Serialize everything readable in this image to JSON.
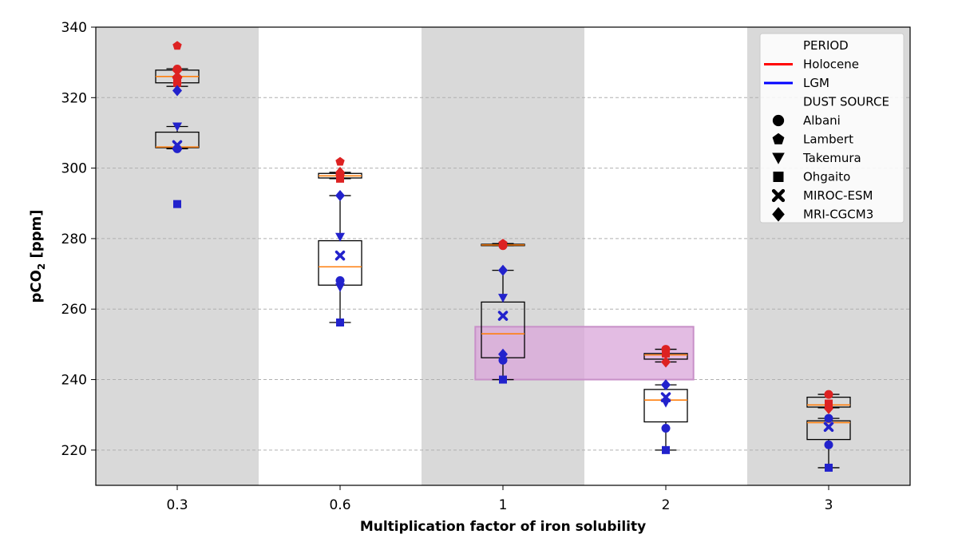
{
  "chart_data": {
    "type": "box",
    "xlabel": "Multiplication factor of iron solubility",
    "ylabel_main": "pCO",
    "ylabel_sub": "2",
    "ylabel_unit": " [ppm]",
    "categories": [
      "0.3",
      "0.6",
      "1",
      "2",
      "3"
    ],
    "ylim": [
      210,
      340
    ],
    "yticks": [
      220,
      240,
      260,
      280,
      300,
      320,
      340
    ],
    "grid": "horizontal dashed",
    "shaded_categories": [
      "0.3",
      "1",
      "3"
    ],
    "highlight_band": {
      "x_from": 1.83,
      "x_to": 3.17,
      "y_from": 240,
      "y_to": 255,
      "color": "#d9a6d9"
    },
    "legend": {
      "placement": "top-right",
      "period_title": "PERIOD",
      "period_entries": [
        {
          "label": "Holocene",
          "color": "#ff0000"
        },
        {
          "label": "LGM",
          "color": "#0000ff"
        }
      ],
      "source_title": "DUST SOURCE",
      "source_entries": [
        {
          "label": "Albani",
          "marker": "circle"
        },
        {
          "label": "Lambert",
          "marker": "pentagon"
        },
        {
          "label": "Takemura",
          "marker": "triangle-down"
        },
        {
          "label": "Ohgaito",
          "marker": "square"
        },
        {
          "label": "MIROC-ESM",
          "marker": "x"
        },
        {
          "label": "MRI-CGCM3",
          "marker": "diamond"
        }
      ]
    },
    "colors": {
      "holocene": "#dd2222",
      "lgm": "#2222cc",
      "median": "#ff7f0e",
      "box": "#000000",
      "shade": "#d9d9d9"
    },
    "boxes": [
      {
        "category": "0.3",
        "period": "Holocene",
        "whisker_low": 323.2,
        "q1": 324.2,
        "median": 326.0,
        "q3": 327.8,
        "whisker_high": 328.2
      },
      {
        "category": "0.3",
        "period": "LGM",
        "whisker_low": 305.5,
        "q1": 305.8,
        "median": 306.0,
        "q3": 310.2,
        "whisker_high": 311.8
      },
      {
        "category": "0.6",
        "period": "Holocene",
        "whisker_low": 297.0,
        "q1": 297.2,
        "median": 297.8,
        "q3": 298.5,
        "whisker_high": 298.8
      },
      {
        "category": "0.6",
        "period": "LGM",
        "whisker_low": 256.2,
        "q1": 266.8,
        "median": 272.0,
        "q3": 279.4,
        "whisker_high": 292.2
      },
      {
        "category": "1",
        "period": "Holocene",
        "whisker_low": 278.0,
        "q1": 278.0,
        "median": 278.2,
        "q3": 278.4,
        "whisker_high": 278.6
      },
      {
        "category": "1",
        "period": "LGM",
        "whisker_low": 240.0,
        "q1": 246.2,
        "median": 253.0,
        "q3": 262.0,
        "whisker_high": 271.0
      },
      {
        "category": "2",
        "period": "Holocene",
        "whisker_low": 245.0,
        "q1": 245.8,
        "median": 247.0,
        "q3": 247.4,
        "whisker_high": 248.6
      },
      {
        "category": "2",
        "period": "LGM",
        "whisker_low": 220.0,
        "q1": 228.0,
        "median": 234.2,
        "q3": 237.2,
        "whisker_high": 238.5
      },
      {
        "category": "3",
        "period": "Holocene",
        "whisker_low": 232.0,
        "q1": 232.2,
        "median": 232.8,
        "q3": 235.0,
        "whisker_high": 235.8
      },
      {
        "category": "3",
        "period": "LGM",
        "whisker_low": 215.0,
        "q1": 223.0,
        "median": 227.8,
        "q3": 228.3,
        "whisker_high": 229.0
      }
    ],
    "points": [
      {
        "category": "0.3",
        "period": "Holocene",
        "source": "Lambert",
        "value": 334.7
      },
      {
        "category": "0.3",
        "period": "Holocene",
        "source": "Albani",
        "value": 328.1
      },
      {
        "category": "0.3",
        "period": "Holocene",
        "source": "MIROC-ESM",
        "value": 326.8
      },
      {
        "category": "0.3",
        "period": "Holocene",
        "source": "MRI-CGCM3",
        "value": 325.5
      },
      {
        "category": "0.3",
        "period": "Holocene",
        "source": "Ohgaito",
        "value": 324.2
      },
      {
        "category": "0.3",
        "period": "Holocene",
        "source": "Takemura",
        "value": 323.2
      },
      {
        "category": "0.3",
        "period": "LGM",
        "source": "MRI-CGCM3",
        "value": 322.0
      },
      {
        "category": "0.3",
        "period": "LGM",
        "source": "Takemura",
        "value": 311.8
      },
      {
        "category": "0.3",
        "period": "LGM",
        "source": "MIROC-ESM",
        "value": 306.5
      },
      {
        "category": "0.3",
        "period": "LGM",
        "source": "Albani",
        "value": 305.5
      },
      {
        "category": "0.3",
        "period": "LGM",
        "source": "Ohgaito",
        "value": 289.8
      },
      {
        "category": "0.6",
        "period": "Holocene",
        "source": "Lambert",
        "value": 301.8
      },
      {
        "category": "0.6",
        "period": "Holocene",
        "source": "MRI-CGCM3",
        "value": 298.8
      },
      {
        "category": "0.6",
        "period": "Holocene",
        "source": "Albani",
        "value": 298.2
      },
      {
        "category": "0.6",
        "period": "Holocene",
        "source": "Ohgaito",
        "value": 297.0
      },
      {
        "category": "0.6",
        "period": "LGM",
        "source": "MRI-CGCM3",
        "value": 292.2
      },
      {
        "category": "0.6",
        "period": "LGM",
        "source": "Takemura",
        "value": 280.5
      },
      {
        "category": "0.6",
        "period": "LGM",
        "source": "MIROC-ESM",
        "value": 275.2
      },
      {
        "category": "0.6",
        "period": "LGM",
        "source": "Albani",
        "value": 268.1
      },
      {
        "category": "0.6",
        "period": "LGM",
        "source": "Takemura",
        "value": 266.2
      },
      {
        "category": "0.6",
        "period": "LGM",
        "source": "Ohgaito",
        "value": 256.2
      },
      {
        "category": "1",
        "period": "Holocene",
        "source": "Lambert",
        "value": 278.6
      },
      {
        "category": "1",
        "period": "Holocene",
        "source": "Albani",
        "value": 278.0
      },
      {
        "category": "1",
        "period": "LGM",
        "source": "MRI-CGCM3",
        "value": 271.0
      },
      {
        "category": "1",
        "period": "LGM",
        "source": "Takemura",
        "value": 263.2
      },
      {
        "category": "1",
        "period": "LGM",
        "source": "MIROC-ESM",
        "value": 258.1
      },
      {
        "category": "1",
        "period": "LGM",
        "source": "MRI-CGCM3",
        "value": 247.2
      },
      {
        "category": "1",
        "period": "LGM",
        "source": "Albani",
        "value": 245.5
      },
      {
        "category": "1",
        "period": "LGM",
        "source": "Ohgaito",
        "value": 240.0
      },
      {
        "category": "2",
        "period": "Holocene",
        "source": "Albani",
        "value": 248.6
      },
      {
        "category": "2",
        "period": "Holocene",
        "source": "Ohgaito",
        "value": 247.4
      },
      {
        "category": "2",
        "period": "Holocene",
        "source": "MRI-CGCM3",
        "value": 245.0
      },
      {
        "category": "2",
        "period": "LGM",
        "source": "MRI-CGCM3",
        "value": 238.5
      },
      {
        "category": "2",
        "period": "LGM",
        "source": "MIROC-ESM",
        "value": 235.0
      },
      {
        "category": "2",
        "period": "LGM",
        "source": "Takemura",
        "value": 233.4
      },
      {
        "category": "2",
        "period": "LGM",
        "source": "Albani",
        "value": 226.2
      },
      {
        "category": "2",
        "period": "LGM",
        "source": "Ohgaito",
        "value": 220.0
      },
      {
        "category": "3",
        "period": "Holocene",
        "source": "Albani",
        "value": 235.8
      },
      {
        "category": "3",
        "period": "Holocene",
        "source": "Ohgaito",
        "value": 233.2
      },
      {
        "category": "3",
        "period": "Holocene",
        "source": "MRI-CGCM3",
        "value": 231.8
      },
      {
        "category": "3",
        "period": "LGM",
        "source": "Albani",
        "value": 229.0
      },
      {
        "category": "3",
        "period": "LGM",
        "source": "MIROC-ESM",
        "value": 226.6
      },
      {
        "category": "3",
        "period": "LGM",
        "source": "Albani",
        "value": 221.5
      },
      {
        "category": "3",
        "period": "LGM",
        "source": "Ohgaito",
        "value": 215.0
      }
    ]
  }
}
